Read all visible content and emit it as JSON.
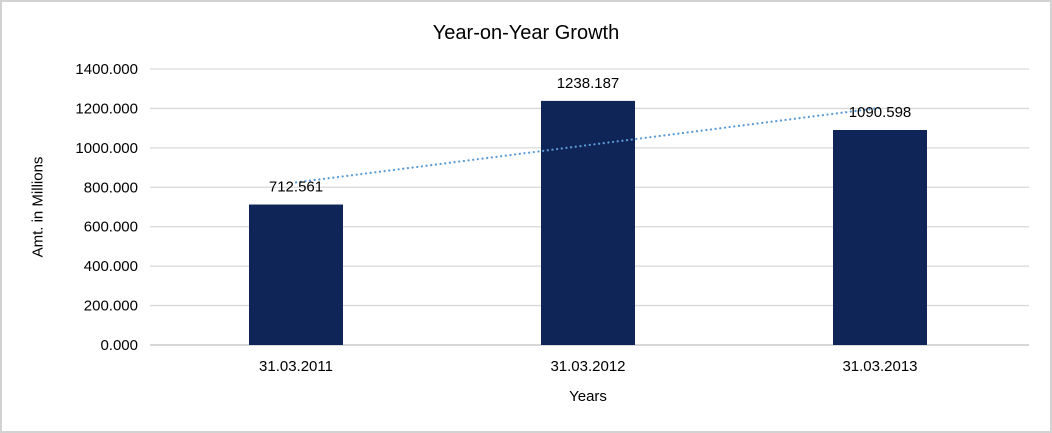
{
  "chart_data": {
    "type": "bar",
    "title": "Year-on-Year Growth",
    "categories": [
      "31.03.2011",
      "31.03.2012",
      "31.03.2013"
    ],
    "values": [
      712.561,
      1238.187,
      1090.598
    ],
    "data_labels": [
      "712.561",
      "1238.187",
      "1090.598"
    ],
    "xlabel": "Years",
    "ylabel": "Amt. in Millions",
    "ylim": [
      0,
      1400
    ],
    "ytick_step": 200,
    "ytick_labels": [
      "0.000",
      "200.000",
      "400.000",
      "600.000",
      "800.000",
      "1000.000",
      "1200.000",
      "1400.000"
    ],
    "grid": true,
    "legend": "none",
    "trendline": {
      "type": "linear",
      "style": "dotted",
      "color": "#5b9bd5"
    },
    "colors": {
      "bar": "#0f2557",
      "gridline": "#d9d9d9",
      "axis_line": "#bfbfbf",
      "text": "#000000",
      "frame_border": "#d2d2d2",
      "background": "#ffffff"
    }
  }
}
